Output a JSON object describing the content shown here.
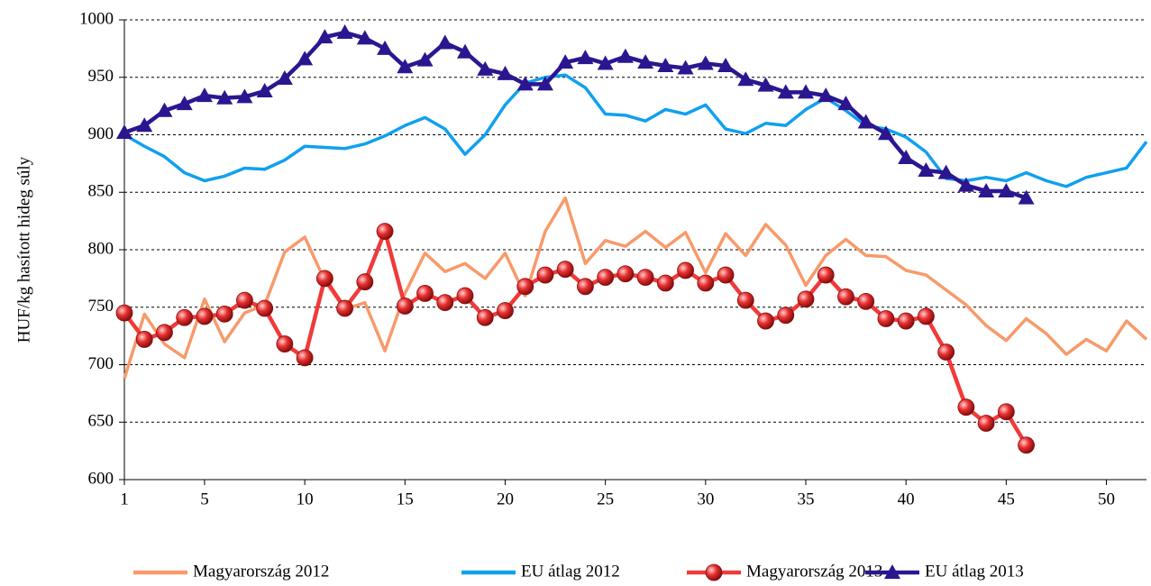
{
  "chart_data": {
    "type": "line",
    "y_label": "HUF/kg hasított hideg súly",
    "x": [
      1,
      2,
      3,
      4,
      5,
      6,
      7,
      8,
      9,
      10,
      11,
      12,
      13,
      14,
      15,
      16,
      17,
      18,
      19,
      20,
      21,
      22,
      23,
      24,
      25,
      26,
      27,
      28,
      29,
      30,
      31,
      32,
      33,
      34,
      35,
      36,
      37,
      38,
      39,
      40,
      41,
      42,
      43,
      44,
      45,
      46,
      47,
      48,
      49,
      50,
      51,
      52
    ],
    "xlim": [
      1,
      52
    ],
    "xticks": [
      1,
      5,
      10,
      15,
      20,
      25,
      30,
      35,
      40,
      45,
      50
    ],
    "ylim": [
      600,
      1000
    ],
    "yticks": [
      600,
      650,
      700,
      750,
      800,
      850,
      900,
      950,
      1000
    ],
    "grid": true,
    "legend": "bottom",
    "series": [
      {
        "name": "Magyarország 2012",
        "color": "#f79a6a",
        "marker": "none",
        "values": [
          688,
          744,
          718,
          706,
          757,
          720,
          745,
          752,
          798,
          811,
          773,
          748,
          754,
          712,
          762,
          797,
          781,
          788,
          775,
          797,
          760,
          816,
          845,
          788,
          808,
          803,
          816,
          802,
          815,
          780,
          814,
          795,
          822,
          804,
          769,
          795,
          809,
          795,
          794,
          782,
          778,
          765,
          752,
          734,
          721,
          740,
          727,
          709,
          722,
          712,
          738,
          722
        ]
      },
      {
        "name": "EU átlag 2012",
        "color": "#10a0ef",
        "marker": "none",
        "values": [
          900,
          890,
          881,
          867,
          860,
          864,
          871,
          870,
          878,
          890,
          889,
          888,
          892,
          899,
          908,
          915,
          905,
          883,
          900,
          926,
          945,
          950,
          952,
          941,
          918,
          917,
          912,
          922,
          918,
          926,
          905,
          901,
          910,
          908,
          922,
          932,
          921,
          908,
          905,
          898,
          885,
          862,
          860,
          863,
          860,
          867,
          860,
          855,
          863,
          867,
          871,
          894
        ]
      },
      {
        "name": "Magyarország 2013",
        "color": "#f03a3a",
        "marker": "circle",
        "values": [
          745,
          722,
          728,
          741,
          742,
          744,
          756,
          749,
          718,
          706,
          775,
          749,
          772,
          816,
          751,
          762,
          754,
          760,
          741,
          747,
          768,
          778,
          783,
          768,
          776,
          779,
          776,
          771,
          782,
          771,
          778,
          756,
          738,
          743,
          757,
          778,
          759,
          755,
          740,
          738,
          742,
          711,
          663,
          649,
          659,
          630,
          null,
          null,
          null,
          null,
          null,
          null
        ]
      },
      {
        "name": "EU átlag 2013",
        "color": "#2c1690",
        "marker": "triangle",
        "values": [
          902,
          908,
          921,
          927,
          934,
          932,
          933,
          938,
          949,
          966,
          985,
          989,
          984,
          975,
          959,
          965,
          980,
          972,
          957,
          953,
          944,
          944,
          963,
          967,
          962,
          968,
          963,
          960,
          958,
          962,
          960,
          948,
          943,
          937,
          937,
          934,
          927,
          911,
          901,
          880,
          869,
          867,
          856,
          851,
          851,
          845,
          null,
          null,
          null,
          null,
          null,
          null
        ]
      }
    ]
  }
}
